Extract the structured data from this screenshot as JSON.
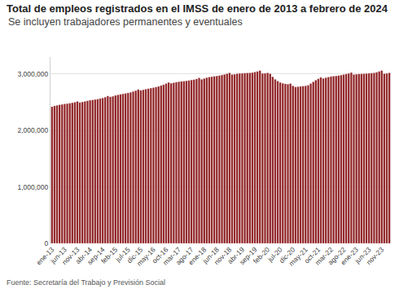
{
  "chart_data": {
    "type": "bar",
    "title": "Total de empleos registrados en el IMSS de enero de 2013 a febrero de 2024",
    "subtitle": "Se incluyen trabajadores permanentes y eventuales",
    "source": "Fuente: Secretaría del Trabajo y Previsión Social",
    "color": "#8c1b1e",
    "grid": true,
    "categories": [
      "ene-13",
      null,
      null,
      null,
      null,
      "jun-13",
      null,
      null,
      null,
      null,
      "nov-13",
      null,
      null,
      null,
      null,
      "abr-14",
      null,
      null,
      null,
      null,
      "sep-14",
      null,
      null,
      null,
      null,
      "feb-15",
      null,
      null,
      null,
      null,
      "jul-15",
      null,
      null,
      null,
      null,
      "dic-15",
      null,
      null,
      null,
      null,
      "may-16",
      null,
      null,
      null,
      null,
      "oct-16",
      null,
      null,
      null,
      null,
      "mar-17",
      null,
      null,
      null,
      null,
      "ago-17",
      null,
      null,
      null,
      null,
      "ene-18",
      null,
      null,
      null,
      null,
      "jun-18",
      null,
      null,
      null,
      null,
      "nov-18",
      null,
      null,
      null,
      null,
      "abr-19",
      null,
      null,
      null,
      null,
      "sep-19",
      null,
      null,
      null,
      null,
      "feb-20",
      null,
      null,
      null,
      null,
      "jul-20",
      null,
      null,
      null,
      null,
      "dic-20",
      null,
      null,
      null,
      null,
      "may-21",
      null,
      null,
      null,
      null,
      "oct-21",
      null,
      null,
      null,
      null,
      "mar-22",
      null,
      null,
      null,
      null,
      "ago-22",
      null,
      null,
      null,
      null,
      "ene-23",
      null,
      null,
      null,
      null,
      "jun-23",
      null,
      null,
      null,
      null,
      "nov-23",
      null,
      null,
      null
    ],
    "values": [
      2420000,
      2435000,
      2445000,
      2455000,
      2462000,
      2470000,
      2475000,
      2482000,
      2490000,
      2500000,
      2515000,
      2495000,
      2505000,
      2515000,
      2525000,
      2535000,
      2540000,
      2548000,
      2555000,
      2565000,
      2575000,
      2590000,
      2610000,
      2595000,
      2605000,
      2620000,
      2630000,
      2640000,
      2648000,
      2655000,
      2665000,
      2675000,
      2690000,
      2705000,
      2725000,
      2710000,
      2720000,
      2732000,
      2740000,
      2750000,
      2758000,
      2768000,
      2780000,
      2795000,
      2810000,
      2830000,
      2850000,
      2835000,
      2845000,
      2855000,
      2862000,
      2868000,
      2872000,
      2878000,
      2885000,
      2893000,
      2900000,
      2912000,
      2930000,
      2905000,
      2920000,
      2935000,
      2945000,
      2952000,
      2958000,
      2965000,
      2972000,
      2982000,
      2992000,
      3005000,
      3020000,
      2990000,
      2995000,
      3005000,
      3010000,
      3012000,
      3015000,
      3018000,
      3020000,
      3025000,
      3035000,
      3045000,
      3060000,
      3010000,
      3012000,
      3020000,
      3005000,
      2950000,
      2905000,
      2875000,
      2850000,
      2835000,
      2825000,
      2820000,
      2830000,
      2790000,
      2770000,
      2775000,
      2780000,
      2785000,
      2790000,
      2800000,
      2830000,
      2860000,
      2890000,
      2915000,
      2940000,
      2920000,
      2935000,
      2945000,
      2955000,
      2960000,
      2965000,
      2972000,
      2980000,
      2990000,
      3000000,
      3010000,
      3025000,
      2990000,
      2995000,
      3000000,
      3002000,
      3005000,
      3008000,
      3012000,
      3015000,
      3020000,
      3030000,
      3045000,
      3060000,
      3005000,
      3010000,
      3020000
    ],
    "ylim": [
      0,
      3300000
    ],
    "yticks": [
      0,
      {
        "value": 1000000,
        "label": "1,000,000"
      },
      {
        "value": 2000000,
        "label": "2,000,000"
      },
      {
        "value": 3000000,
        "label": "3,000,000"
      }
    ]
  }
}
